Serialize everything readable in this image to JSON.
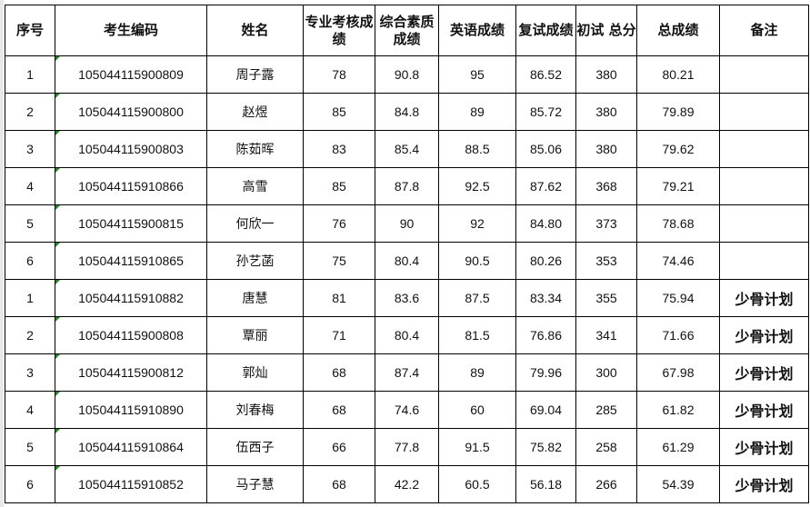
{
  "headers": [
    "序号",
    "考生编码",
    "姓名",
    "专业考核成绩",
    "综合素质成绩",
    "英语成绩",
    "复试成绩",
    "初试 总分",
    "总成绩",
    "备注"
  ],
  "rows": [
    {
      "seq": "1",
      "code": "105044115900809",
      "name": "周子露",
      "major": "78",
      "overall": "90.8",
      "english": "95",
      "retest": "86.52",
      "initial": "380",
      "total": "80.21",
      "note": ""
    },
    {
      "seq": "2",
      "code": "105044115900800",
      "name": "赵煜",
      "major": "85",
      "overall": "84.8",
      "english": "89",
      "retest": "85.72",
      "initial": "380",
      "total": "79.89",
      "note": ""
    },
    {
      "seq": "3",
      "code": "105044115900803",
      "name": "陈茹晖",
      "major": "83",
      "overall": "85.4",
      "english": "88.5",
      "retest": "85.06",
      "initial": "380",
      "total": "79.62",
      "note": ""
    },
    {
      "seq": "4",
      "code": "105044115910866",
      "name": "高雪",
      "major": "85",
      "overall": "87.8",
      "english": "92.5",
      "retest": "87.62",
      "initial": "368",
      "total": "79.21",
      "note": ""
    },
    {
      "seq": "5",
      "code": "105044115900815",
      "name": "何欣一",
      "major": "76",
      "overall": "90",
      "english": "92",
      "retest": "84.80",
      "initial": "373",
      "total": "78.68",
      "note": ""
    },
    {
      "seq": "6",
      "code": "105044115910865",
      "name": "孙艺菡",
      "major": "75",
      "overall": "80.4",
      "english": "90.5",
      "retest": "80.26",
      "initial": "353",
      "total": "74.46",
      "note": ""
    },
    {
      "seq": "1",
      "code": "105044115910882",
      "name": "唐慧",
      "major": "81",
      "overall": "83.6",
      "english": "87.5",
      "retest": "83.34",
      "initial": "355",
      "total": "75.94",
      "note": "少骨计划"
    },
    {
      "seq": "2",
      "code": "105044115900808",
      "name": "覃丽",
      "major": "71",
      "overall": "80.4",
      "english": "81.5",
      "retest": "76.86",
      "initial": "341",
      "total": "71.66",
      "note": "少骨计划"
    },
    {
      "seq": "3",
      "code": "105044115900812",
      "name": "郭灿",
      "major": "68",
      "overall": "87.4",
      "english": "89",
      "retest": "79.96",
      "initial": "300",
      "total": "67.98",
      "note": "少骨计划"
    },
    {
      "seq": "4",
      "code": "105044115910890",
      "name": "刘春梅",
      "major": "68",
      "overall": "74.6",
      "english": "60",
      "retest": "69.04",
      "initial": "285",
      "total": "61.82",
      "note": "少骨计划"
    },
    {
      "seq": "5",
      "code": "105044115910864",
      "name": "伍西子",
      "major": "66",
      "overall": "77.8",
      "english": "91.5",
      "retest": "75.82",
      "initial": "258",
      "total": "61.29",
      "note": "少骨计划"
    },
    {
      "seq": "6",
      "code": "105044115910852",
      "name": "马子慧",
      "major": "68",
      "overall": "42.2",
      "english": "60.5",
      "retest": "56.18",
      "initial": "266",
      "total": "54.39",
      "note": "少骨计划"
    }
  ]
}
